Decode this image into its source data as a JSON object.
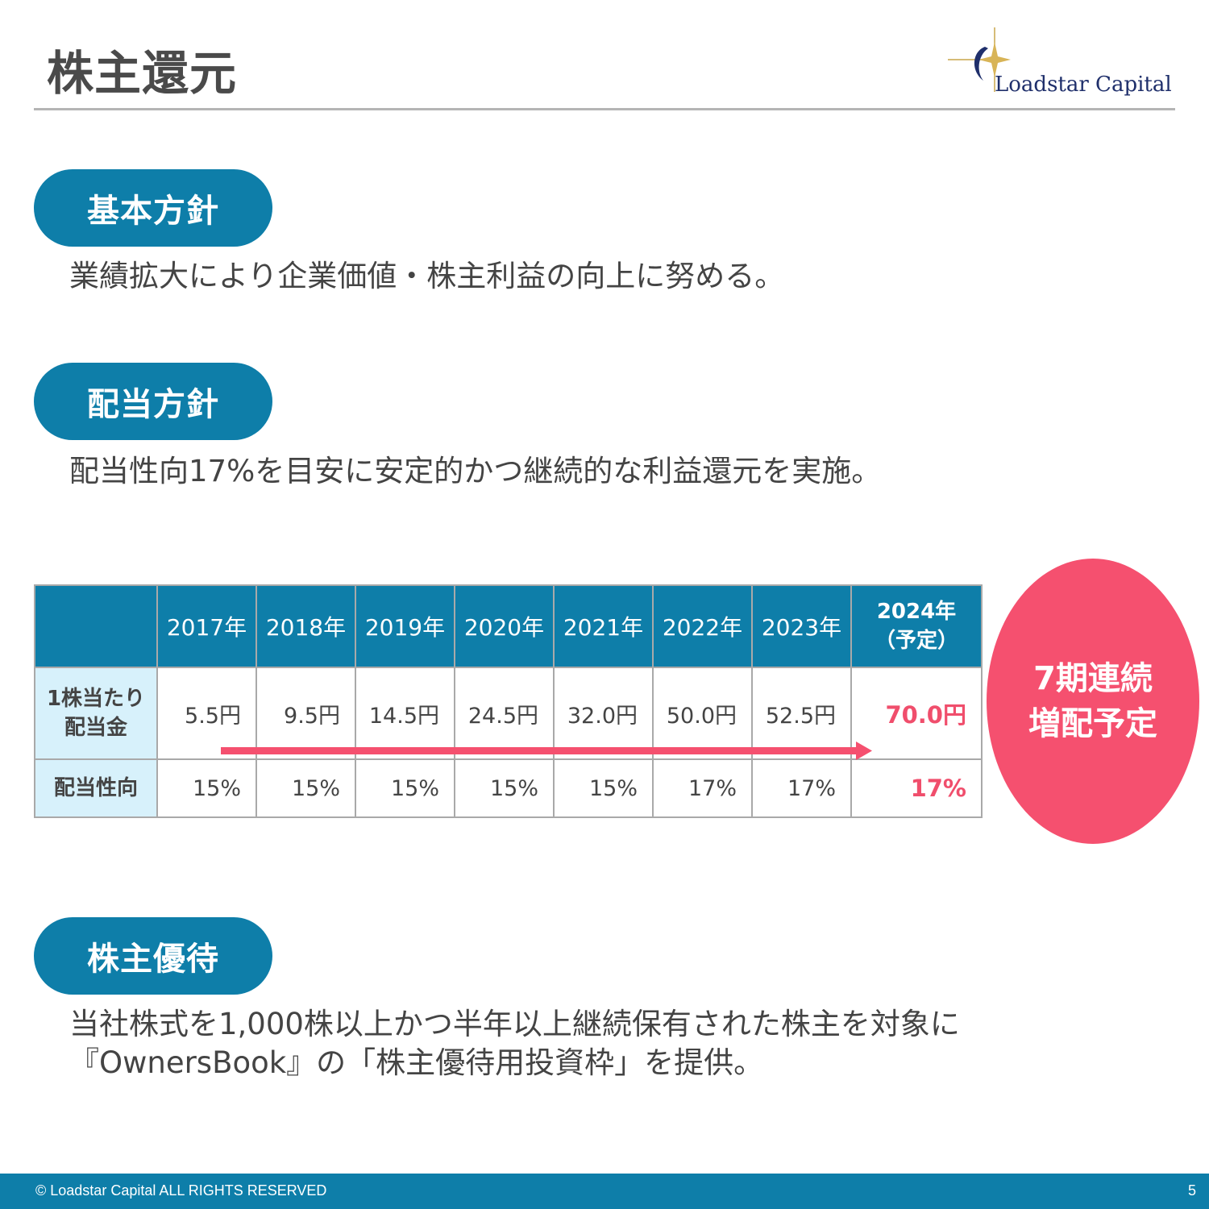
{
  "header": {
    "title": "株主還元",
    "logo_text": "Loadstar Capital",
    "logo_icon": "star-crescent-logo-icon"
  },
  "sections": {
    "basic": {
      "heading": "基本方針",
      "text": "業績拡大により企業価値・株主利益の向上に努める。"
    },
    "dividend": {
      "heading": "配当方針",
      "text": "配当性向17%を目安に安定的かつ継続的な利益還元を実施。"
    },
    "benefit": {
      "heading": "株主優待",
      "line1": "当社株式を1,000株以上かつ半年以上継続保有された株主を対象に",
      "line2": "『OwnersBook』の「株主優待用投資枠」を提供。"
    }
  },
  "table": {
    "years": [
      "2017年",
      "2018年",
      "2019年",
      "2020年",
      "2021年",
      "2022年",
      "2023年"
    ],
    "last_year": "2024年",
    "last_year_note": "（予定）",
    "row_amount_label_1": "1株当たり",
    "row_amount_label_2": "配当金",
    "amounts": [
      "5.5円",
      "9.5円",
      "14.5円",
      "24.5円",
      "32.0円",
      "50.0円",
      "52.5円"
    ],
    "last_amount": "70.0円",
    "row_ratio_label": "配当性向",
    "ratios": [
      "15%",
      "15%",
      "15%",
      "15%",
      "15%",
      "17%",
      "17%"
    ],
    "last_ratio": "17%"
  },
  "badge": {
    "line1": "7期連続",
    "line2": "増配予定"
  },
  "footer": {
    "copyright": "© Loadstar Capital ALL RIGHTS RESERVED",
    "page": "5"
  },
  "colors": {
    "primary": "#0e7ea9",
    "accent": "#f5506f",
    "label_bg": "#d7f1fb",
    "logo_text": "#1f2f6b"
  }
}
